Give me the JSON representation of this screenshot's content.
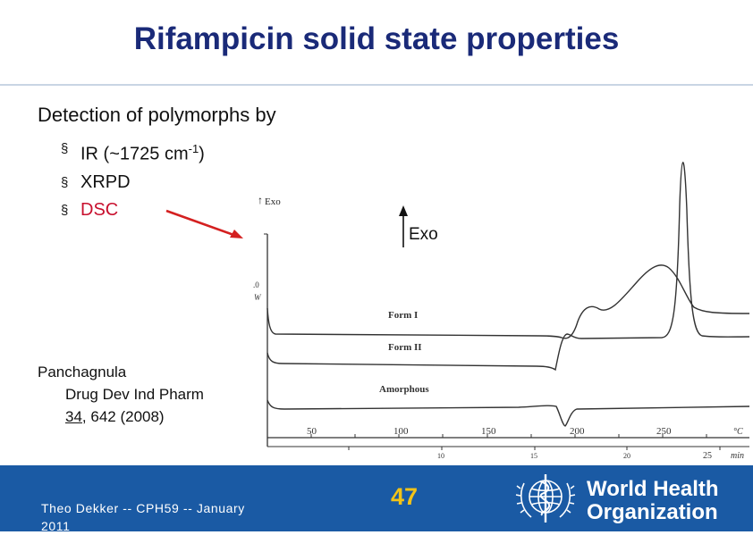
{
  "slide": {
    "title": "Rifampicin solid state properties",
    "heading": "Detection of polymorphs by",
    "bullets": {
      "ir_prefix": "IR (~1725 cm",
      "ir_sup": "-1",
      "ir_suffix": ")",
      "xrpd": "XRPD",
      "dsc": "DSC"
    },
    "bullet_symbol": "§",
    "exo_label": "Exo",
    "citation": {
      "author": "Panchagnula",
      "journal": "Drug Dev Ind Pharm",
      "volume": "34",
      "rest": ", 642 (2008)"
    }
  },
  "figure": {
    "axis_tag": "Exo",
    "marker": ".0",
    "unit": "W",
    "curve_labels": {
      "form1": "Form I",
      "form2": "Form II",
      "amorphous": "Amorphous"
    },
    "temp_ticks": [
      "50",
      "100",
      "150",
      "200",
      "250",
      "°C"
    ],
    "time_ticks": [
      "10",
      "15",
      "20",
      "25",
      "min"
    ]
  },
  "footer": {
    "line1": "Theo Dekker   -- CPH59  -- January",
    "line2": "2011",
    "page_number": "47",
    "org_line1": "World Health",
    "org_line2": "Organization"
  },
  "colors": {
    "title": "#1a2a78",
    "footer_bg": "#1a5aa4",
    "accent_red": "#c8102e",
    "page_number": "#f2c318"
  }
}
